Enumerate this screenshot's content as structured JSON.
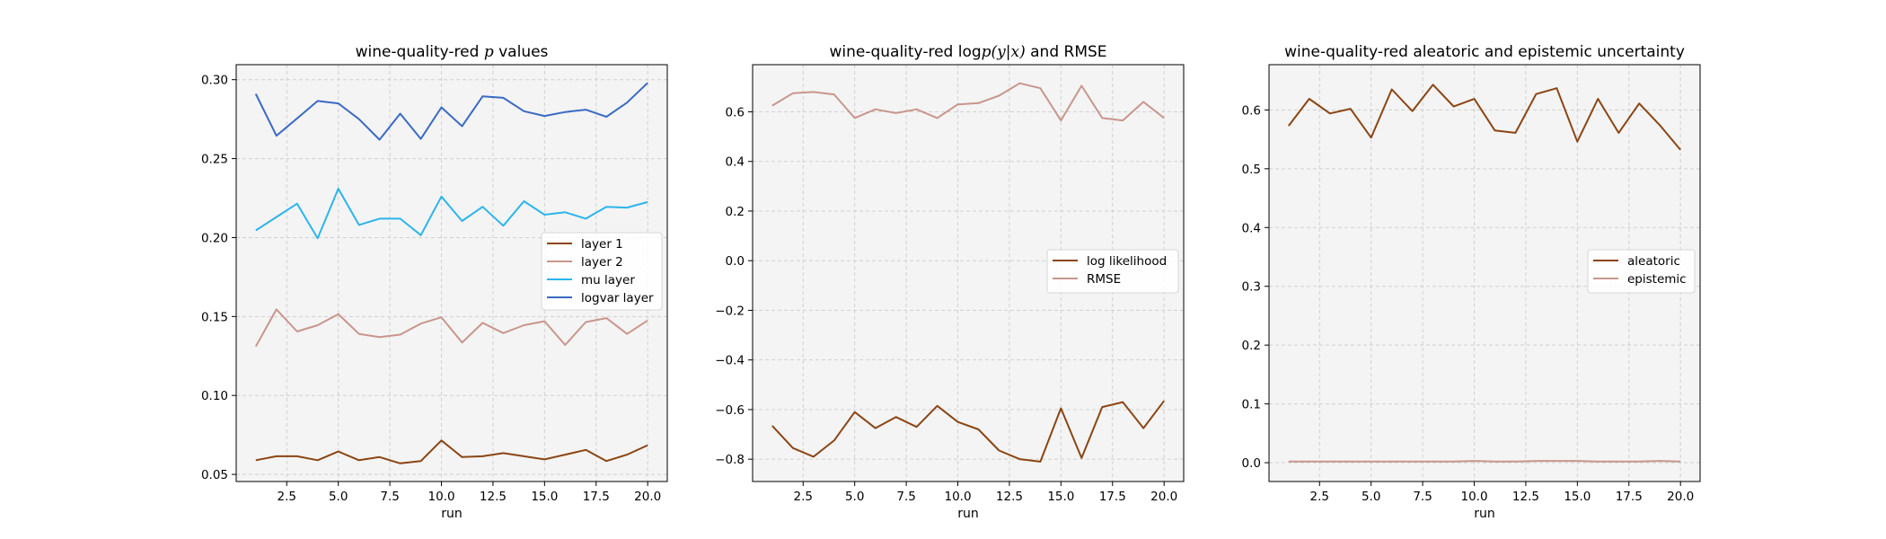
{
  "chart_data": [
    {
      "type": "line",
      "title_prefix": "wine-quality-red ",
      "title_math": "p",
      "title_suffix": " values",
      "xlabel": "run",
      "ylabel": "",
      "xlim": [
        0.05,
        20.95
      ],
      "ylim": [
        0.0455,
        0.3095
      ],
      "xticks": [
        "2.5",
        "5.0",
        "7.5",
        "10.0",
        "12.5",
        "15.0",
        "17.5",
        "20.0"
      ],
      "yticks": [
        "0.05",
        "0.10",
        "0.15",
        "0.20",
        "0.25",
        "0.30"
      ],
      "grid": true,
      "legend_position": "center-right",
      "x": [
        1,
        2,
        3,
        4,
        5,
        6,
        7,
        8,
        9,
        10,
        11,
        12,
        13,
        14,
        15,
        16,
        17,
        18,
        19,
        20
      ],
      "series": [
        {
          "name": "layer 1",
          "color": "#8b4513",
          "values": [
            0.059,
            0.0615,
            0.0615,
            0.059,
            0.0645,
            0.059,
            0.061,
            0.057,
            0.0585,
            0.0715,
            0.061,
            0.0615,
            0.0635,
            0.0615,
            0.0595,
            0.0625,
            0.0655,
            0.0585,
            0.0625,
            0.0685
          ]
        },
        {
          "name": "layer 2",
          "color": "#c8968c",
          "values": [
            0.131,
            0.1545,
            0.1405,
            0.1445,
            0.1515,
            0.139,
            0.137,
            0.1385,
            0.1455,
            0.1495,
            0.1335,
            0.146,
            0.1395,
            0.1445,
            0.147,
            0.132,
            0.1465,
            0.149,
            0.139,
            0.1475
          ]
        },
        {
          "name": "mu layer",
          "color": "#2cb5ea",
          "values": [
            0.2045,
            0.213,
            0.2215,
            0.1995,
            0.231,
            0.208,
            0.212,
            0.212,
            0.2015,
            0.226,
            0.2105,
            0.2195,
            0.2075,
            0.223,
            0.2145,
            0.216,
            0.212,
            0.2195,
            0.219,
            0.2225
          ]
        },
        {
          "name": "logvar layer",
          "color": "#3a6ac3",
          "values": [
            0.291,
            0.2645,
            0.2755,
            0.2865,
            0.285,
            0.275,
            0.262,
            0.2785,
            0.2625,
            0.2825,
            0.2705,
            0.2895,
            0.2885,
            0.28,
            0.277,
            0.2795,
            0.281,
            0.2765,
            0.2855,
            0.298
          ]
        }
      ]
    },
    {
      "type": "line",
      "title_prefix": "wine-quality-red log",
      "title_math": "p(y|x)",
      "title_suffix": " and RMSE",
      "xlabel": "run",
      "ylabel": "",
      "xlim": [
        0.05,
        20.95
      ],
      "ylim": [
        -0.89,
        0.79
      ],
      "xticks": [
        "2.5",
        "5.0",
        "7.5",
        "10.0",
        "12.5",
        "15.0",
        "17.5",
        "20.0"
      ],
      "yticks": [
        "−0.8",
        "−0.6",
        "−0.4",
        "−0.2",
        "0.0",
        "0.2",
        "0.4",
        "0.6"
      ],
      "grid": true,
      "legend_position": "center-right",
      "x": [
        1,
        2,
        3,
        4,
        5,
        6,
        7,
        8,
        9,
        10,
        11,
        12,
        13,
        14,
        15,
        16,
        17,
        18,
        19,
        20
      ],
      "series": [
        {
          "name": "log likelihood",
          "color": "#8b4513",
          "values": [
            -0.665,
            -0.755,
            -0.79,
            -0.725,
            -0.61,
            -0.675,
            -0.63,
            -0.67,
            -0.585,
            -0.65,
            -0.68,
            -0.765,
            -0.8,
            -0.81,
            -0.595,
            -0.795,
            -0.59,
            -0.57,
            -0.675,
            -0.565
          ]
        },
        {
          "name": "RMSE",
          "color": "#c8968c",
          "values": [
            0.625,
            0.675,
            0.68,
            0.67,
            0.575,
            0.61,
            0.595,
            0.61,
            0.575,
            0.63,
            0.635,
            0.665,
            0.715,
            0.695,
            0.565,
            0.705,
            0.575,
            0.565,
            0.64,
            0.575
          ]
        }
      ]
    },
    {
      "type": "line",
      "title_prefix": "wine-quality-red aleatoric and epistemic uncertainty",
      "title_math": "",
      "title_suffix": "",
      "xlabel": "run",
      "ylabel": "",
      "xlim": [
        0.05,
        20.95
      ],
      "ylim": [
        -0.032,
        0.677
      ],
      "xticks": [
        "2.5",
        "5.0",
        "7.5",
        "10.0",
        "12.5",
        "15.0",
        "17.5",
        "20.0"
      ],
      "yticks": [
        "0.0",
        "0.1",
        "0.2",
        "0.3",
        "0.4",
        "0.5",
        "0.6"
      ],
      "grid": true,
      "legend_position": "center-right",
      "x": [
        1,
        2,
        3,
        4,
        5,
        6,
        7,
        8,
        9,
        10,
        11,
        12,
        13,
        14,
        15,
        16,
        17,
        18,
        19,
        20
      ],
      "series": [
        {
          "name": "aleatoric",
          "color": "#8b4513",
          "values": [
            0.573,
            0.619,
            0.594,
            0.602,
            0.553,
            0.635,
            0.598,
            0.643,
            0.606,
            0.619,
            0.565,
            0.561,
            0.627,
            0.637,
            0.546,
            0.619,
            0.561,
            0.611,
            0.574,
            0.532
          ]
        },
        {
          "name": "epistemic",
          "color": "#c8968c",
          "values": [
            0.002,
            0.002,
            0.002,
            0.002,
            0.002,
            0.002,
            0.002,
            0.002,
            0.002,
            0.003,
            0.002,
            0.002,
            0.003,
            0.003,
            0.003,
            0.002,
            0.002,
            0.002,
            0.003,
            0.002
          ]
        }
      ]
    }
  ]
}
